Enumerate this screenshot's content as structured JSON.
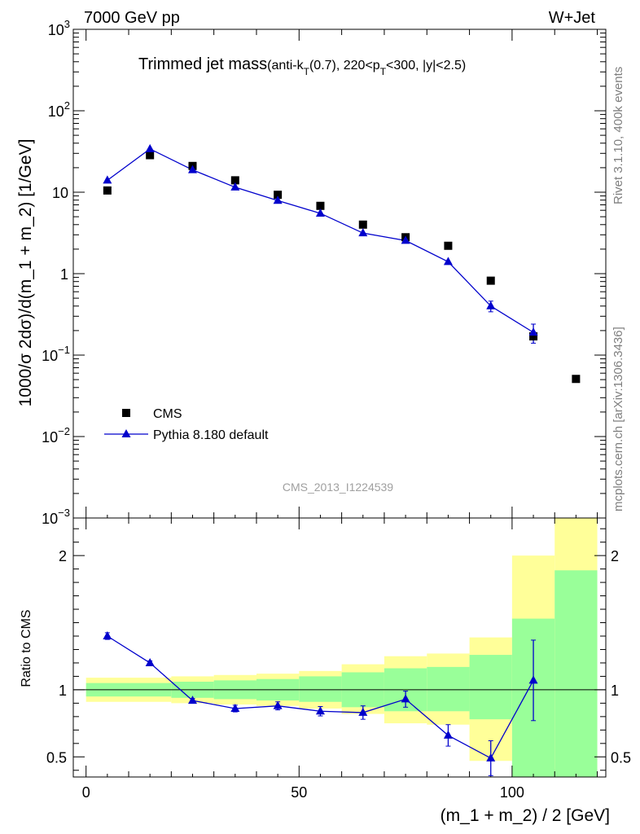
{
  "header": {
    "left": "7000 GeV pp",
    "right": "W+Jet"
  },
  "side_labels": {
    "version": "Rivet 3.1.10,  400k events",
    "source": "mcplots.cern.ch [arXiv:1306.3436]"
  },
  "chart_data": [
    {
      "type": "scatter",
      "title": "Trimmed jet mass",
      "title_cut_parts": [
        "(anti-k",
        "T",
        "(0.7), 220<p",
        "T",
        "<300, |y|<2.5)"
      ],
      "ylabel": "1000/σ 2dσ)/d(m_1 + m_2) [1/GeV]",
      "watermark": "CMS_2013_I1224539",
      "yscale": "log",
      "xlim": [
        -3,
        122
      ],
      "ylim": [
        0.001,
        1000
      ],
      "y_tick_labels": {
        "1e-3": [
          "10",
          "−3"
        ],
        "1e-2": [
          "10",
          "−2"
        ],
        "1e-1": [
          "10",
          "−1"
        ],
        "1": [
          "1"
        ],
        "10": [
          "10"
        ],
        "1e2": [
          "10",
          "2"
        ],
        "1e3": [
          "10",
          "3"
        ]
      },
      "legend": {
        "position": "bottom-left",
        "entries": [
          "CMS",
          "Pythia 8.180 default"
        ]
      },
      "series": [
        {
          "name": "CMS",
          "marker": "square",
          "color": "#000000",
          "x": [
            5,
            15,
            25,
            35,
            45,
            55,
            65,
            75,
            85,
            95,
            105,
            115
          ],
          "y": [
            10.5,
            28.5,
            21,
            14,
            9.3,
            6.8,
            4.0,
            2.8,
            2.2,
            0.82,
            0.17,
            0.051
          ]
        },
        {
          "name": "Pythia 8.180 default",
          "marker": "triangle",
          "color": "#0000cc",
          "x": [
            5,
            15,
            25,
            35,
            45,
            55,
            65,
            75,
            85,
            95,
            105
          ],
          "y": [
            14,
            34,
            18.8,
            11.5,
            7.9,
            5.5,
            3.15,
            2.55,
            1.4,
            0.4,
            0.19
          ],
          "y_err": [
            0,
            0,
            0,
            0,
            0,
            0,
            0,
            0,
            0,
            0.06,
            0.05
          ]
        }
      ]
    },
    {
      "type": "line",
      "ylabel": "Ratio to CMS",
      "xlabel": "(m_1 + m_2) / 2 [GeV]",
      "xlim": [
        -3,
        122
      ],
      "ylim": [
        0.35,
        2.28
      ],
      "x_ticks": [
        0,
        50,
        100
      ],
      "y_ticks": [
        0.5,
        1,
        2
      ],
      "reference_line": 1,
      "bands": {
        "bin_edges": [
          0,
          10,
          20,
          30,
          40,
          50,
          60,
          70,
          80,
          90,
          100,
          110,
          120
        ],
        "yellow_color": "#ffff99",
        "green_color": "#99ff99",
        "yellow_lo": [
          0.91,
          0.91,
          0.9,
          0.89,
          0.88,
          0.86,
          0.82,
          0.75,
          0.74,
          0.47,
          0.35,
          0.35
        ],
        "yellow_hi": [
          1.09,
          1.09,
          1.1,
          1.11,
          1.12,
          1.14,
          1.19,
          1.25,
          1.27,
          1.39,
          2.0,
          2.28
        ],
        "green_lo": [
          0.95,
          0.95,
          0.94,
          0.93,
          0.92,
          0.91,
          0.87,
          0.84,
          0.84,
          0.78,
          0.35,
          0.35
        ],
        "green_hi": [
          1.05,
          1.05,
          1.06,
          1.07,
          1.08,
          1.1,
          1.13,
          1.16,
          1.17,
          1.26,
          1.53,
          1.89
        ]
      },
      "series": [
        {
          "name": "Pythia 8.180 default",
          "color": "#0000cc",
          "x": [
            5,
            15,
            25,
            35,
            45,
            55,
            65,
            75,
            85,
            95,
            105
          ],
          "y": [
            1.4,
            1.2,
            0.92,
            0.86,
            0.88,
            0.84,
            0.83,
            0.93,
            0.66,
            0.49,
            1.07
          ],
          "y_err": [
            0.025,
            0.015,
            0.015,
            0.025,
            0.03,
            0.035,
            0.05,
            0.06,
            0.08,
            0.13,
            0.3
          ]
        }
      ]
    }
  ]
}
